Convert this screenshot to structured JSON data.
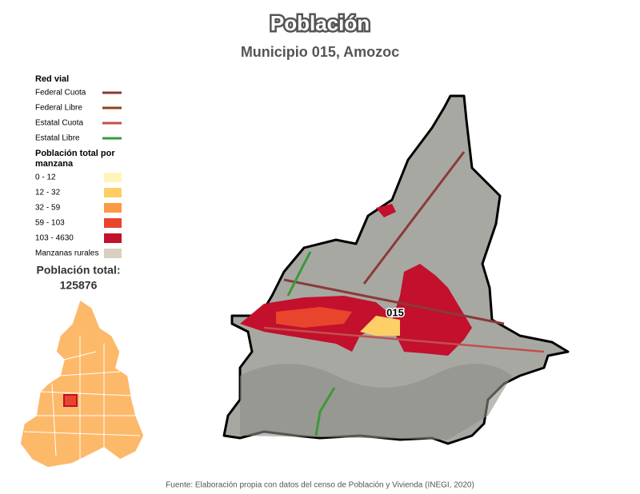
{
  "header": {
    "title": "Población",
    "subtitle": "Municipio 015, Amozoc"
  },
  "legend": {
    "roads_title": "Red vial",
    "roads": [
      {
        "label": "Federal Cuota",
        "color": "#8b3a3a"
      },
      {
        "label": "Federal Libre",
        "color": "#8b4513"
      },
      {
        "label": "Estatal Cuota",
        "color": "#c0504d"
      },
      {
        "label": "Estatal Libre",
        "color": "#3a9a3a"
      }
    ],
    "population_title": "Población total por manzana",
    "classes": [
      {
        "label": "0 - 12",
        "color": "#fff5b8"
      },
      {
        "label": "12 - 32",
        "color": "#fdcf66"
      },
      {
        "label": "32 - 59",
        "color": "#fb9a44"
      },
      {
        "label": "59 - 103",
        "color": "#e8452c"
      },
      {
        "label": "103 - 4630",
        "color": "#c2102d"
      },
      {
        "label": "Manzanas rurales",
        "color": "#d9cfc0"
      }
    ]
  },
  "total": {
    "label": "Población total:",
    "value": 125876
  },
  "map": {
    "municipality_label": "015"
  },
  "source": "Fuente: Elaboración propia con datos del censo de Población y Vivienda (INEGI, 2020)"
}
